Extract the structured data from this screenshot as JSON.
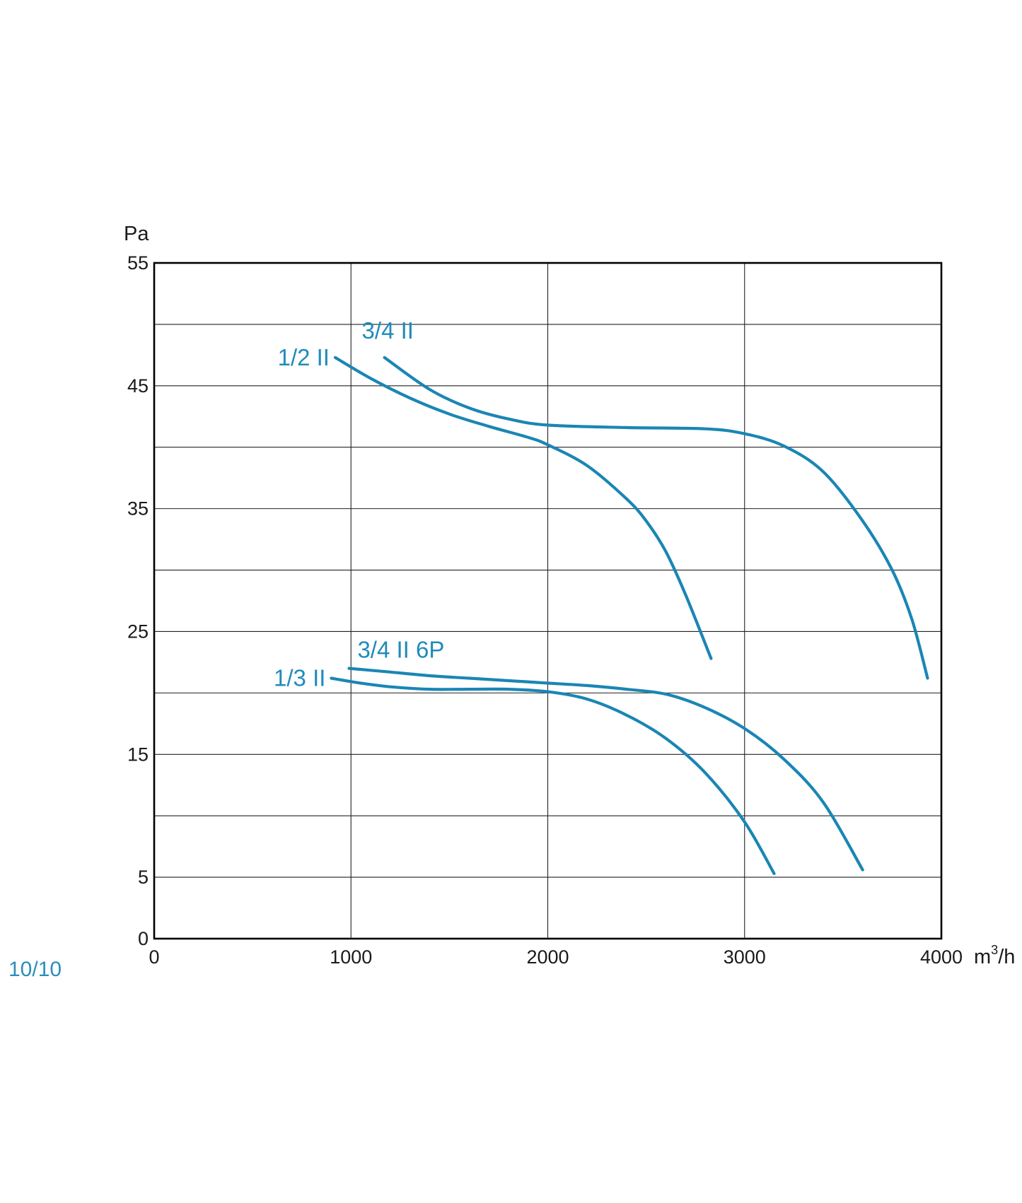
{
  "page_counter": "10/10",
  "chart_data": {
    "type": "line",
    "ylabel": "Pa",
    "xlabel_base": "m",
    "xlabel_sup": "3",
    "xlabel_tail": "/h",
    "xlim": [
      0,
      4000
    ],
    "ylim": [
      0,
      55
    ],
    "x_ticks": [
      0,
      1000,
      2000,
      3000,
      4000
    ],
    "x_tick_labels": [
      "0",
      "1000",
      "2000",
      "3000",
      "4000"
    ],
    "y_ticks": [
      0,
      5,
      15,
      25,
      35,
      45,
      55
    ],
    "y_tick_labels": [
      "0",
      "5",
      "15",
      "25",
      "35",
      "45",
      "55"
    ],
    "grid_y": [
      0,
      5,
      10,
      15,
      20,
      25,
      30,
      35,
      40,
      45,
      50,
      55
    ],
    "grid_x": [
      0,
      1000,
      2000,
      3000,
      4000
    ],
    "grid": true,
    "line_color": "#1a86b4",
    "label_color": "#1f8bbb",
    "series": [
      {
        "name": "3/4 II",
        "x": [
          1170,
          1400,
          1600,
          1800,
          2000,
          2400,
          2800,
          3000,
          3200,
          3400,
          3600,
          3750,
          3850,
          3930
        ],
        "y": [
          47.3,
          44.7,
          43.2,
          42.3,
          41.8,
          41.6,
          41.5,
          41.1,
          40.1,
          38.0,
          34.0,
          30.0,
          26.0,
          21.2
        ]
      },
      {
        "name": "1/2 II",
        "x": [
          920,
          1100,
          1300,
          1500,
          1700,
          1900,
          2000,
          2200,
          2400,
          2500,
          2600,
          2700,
          2830
        ],
        "y": [
          47.3,
          45.6,
          44.0,
          42.7,
          41.7,
          40.8,
          40.2,
          38.5,
          35.8,
          34.0,
          31.5,
          28.0,
          22.8
        ]
      },
      {
        "name": "3/4 II 6P",
        "x": [
          990,
          1200,
          1400,
          1600,
          1800,
          2000,
          2200,
          2400,
          2600,
          2800,
          3000,
          3200,
          3400,
          3600
        ],
        "y": [
          22.0,
          21.7,
          21.4,
          21.2,
          21.0,
          20.8,
          20.6,
          20.3,
          19.9,
          18.8,
          17.1,
          14.6,
          11.1,
          5.6
        ]
      },
      {
        "name": "1/3 II",
        "x": [
          900,
          1050,
          1200,
          1400,
          1600,
          1800,
          2000,
          2200,
          2400,
          2600,
          2800,
          3000,
          3150
        ],
        "y": [
          21.2,
          20.8,
          20.5,
          20.3,
          20.3,
          20.3,
          20.1,
          19.5,
          18.2,
          16.3,
          13.5,
          9.5,
          5.3
        ]
      }
    ]
  }
}
